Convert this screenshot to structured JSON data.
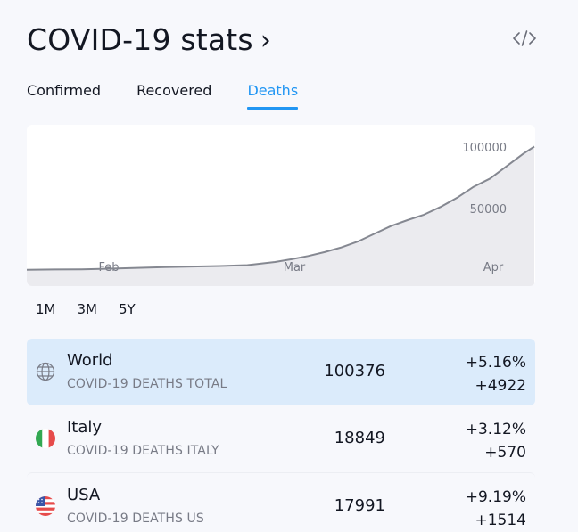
{
  "header": {
    "title": "COVID-19 stats",
    "chevron": "›",
    "embed_icon": "code-icon"
  },
  "tabs": [
    {
      "label": "Confirmed",
      "active": false
    },
    {
      "label": "Recovered",
      "active": false
    },
    {
      "label": "Deaths",
      "active": true
    }
  ],
  "ranges": [
    {
      "label": "1M"
    },
    {
      "label": "3M"
    },
    {
      "label": "5Y"
    }
  ],
  "chart_data": {
    "type": "area",
    "x_tick_labels": [
      "Feb",
      "Mar",
      "Apr"
    ],
    "y_tick_labels": [
      "100000",
      "50000"
    ],
    "y_ticks": [
      100000,
      50000
    ],
    "ylim": [
      0,
      108000
    ],
    "x": [
      0,
      5,
      10,
      15,
      20,
      25,
      30,
      35,
      40,
      45,
      48,
      51,
      54,
      57,
      60,
      63,
      66,
      69,
      72,
      75,
      78,
      81,
      84,
      87,
      90,
      92
    ],
    "values": [
      210,
      430,
      600,
      1100,
      1770,
      2400,
      2850,
      3250,
      4000,
      6500,
      8800,
      11400,
      14600,
      18300,
      23100,
      29400,
      35700,
      40600,
      45000,
      51300,
      58800,
      67700,
      74400,
      84500,
      94500,
      100376
    ],
    "grid": false,
    "line_color": "#858891",
    "fill_color": "#ebebef"
  },
  "rows": [
    {
      "name": "World",
      "desc": "COVID-19 DEATHS TOTAL",
      "value": "100376",
      "pct": "+5.16%",
      "abs": "+4922",
      "icon": "globe-icon",
      "selected": true
    },
    {
      "name": "Italy",
      "desc": "COVID-19 DEATHS ITALY",
      "value": "18849",
      "pct": "+3.12%",
      "abs": "+570",
      "icon": "italy-flag-icon",
      "selected": false
    },
    {
      "name": "USA",
      "desc": "COVID-19 DEATHS US",
      "value": "17991",
      "pct": "+9.19%",
      "abs": "+1514",
      "icon": "usa-flag-icon",
      "selected": false
    }
  ]
}
